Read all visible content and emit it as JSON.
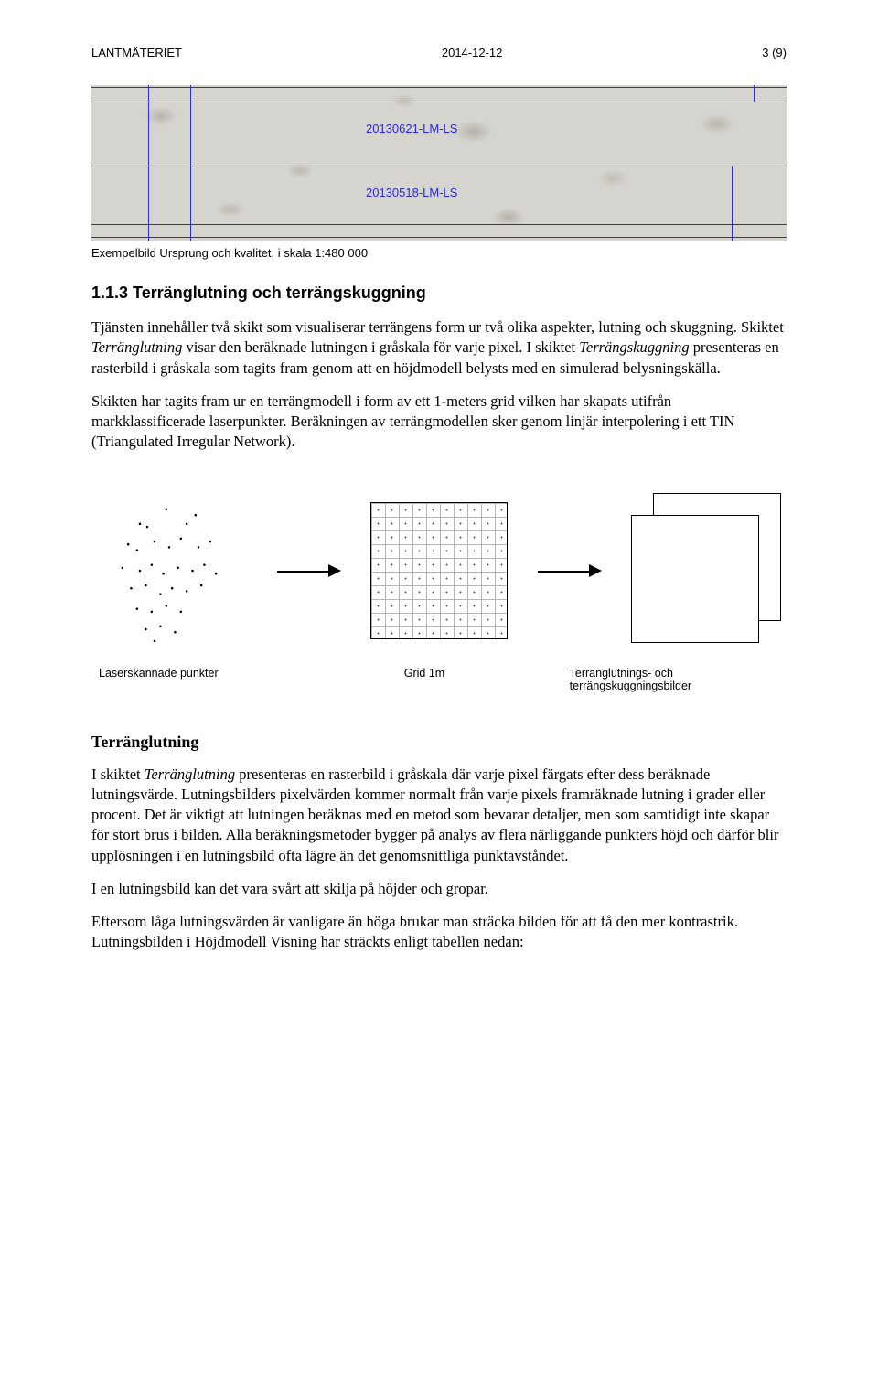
{
  "header": {
    "org": "LANTMÄTERIET",
    "date": "2014-12-12",
    "page": "3 (9)"
  },
  "figure1": {
    "label_a": "20130621-LM-LS",
    "label_b": "20130518-LM-LS",
    "caption": "Exempelbild Ursprung och kvalitet, i skala 1:480 000",
    "line_color": "#2a2ae0",
    "background": "#d6d4cf"
  },
  "section": {
    "number_title": "1.1.3 Terränglutning och terrängskuggning"
  },
  "para1_a": "Tjänsten innehåller två skikt som visualiserar terrängens form ur två olika aspekter, lutning och skuggning. Skiktet ",
  "para1_term1": "Terränglutning",
  "para1_b": " visar den beräknade lutningen i gråskala för varje pixel. I skiktet ",
  "para1_term2": "Terrängskuggning",
  "para1_c": " presenteras en rasterbild i gråskala som tagits fram genom att en höjdmodell belysts med en simulerad belysningskälla.",
  "para2": "Skikten har tagits fram ur en terrängmodell i form av ett 1-meters grid vilken har skapats utifrån markklassificerade laserpunkter. Beräkningen av terrängmodellen sker genom linjär interpolering i ett TIN (Triangulated Irregular Network).",
  "diagram": {
    "label1": "Laserskannade punkter",
    "label2": "Grid 1m",
    "label3": "Terränglutnings- och terrängskuggningsbilder",
    "scatter_points": [
      [
        0.48,
        0.08
      ],
      [
        0.3,
        0.18
      ],
      [
        0.35,
        0.2
      ],
      [
        0.62,
        0.18
      ],
      [
        0.68,
        0.12
      ],
      [
        0.22,
        0.32
      ],
      [
        0.28,
        0.36
      ],
      [
        0.4,
        0.3
      ],
      [
        0.5,
        0.34
      ],
      [
        0.58,
        0.28
      ],
      [
        0.7,
        0.34
      ],
      [
        0.78,
        0.3
      ],
      [
        0.18,
        0.48
      ],
      [
        0.3,
        0.5
      ],
      [
        0.38,
        0.46
      ],
      [
        0.46,
        0.52
      ],
      [
        0.56,
        0.48
      ],
      [
        0.66,
        0.5
      ],
      [
        0.74,
        0.46
      ],
      [
        0.82,
        0.52
      ],
      [
        0.24,
        0.62
      ],
      [
        0.34,
        0.6
      ],
      [
        0.44,
        0.66
      ],
      [
        0.52,
        0.62
      ],
      [
        0.62,
        0.64
      ],
      [
        0.72,
        0.6
      ],
      [
        0.28,
        0.76
      ],
      [
        0.38,
        0.78
      ],
      [
        0.48,
        0.74
      ],
      [
        0.58,
        0.78
      ],
      [
        0.34,
        0.9
      ],
      [
        0.44,
        0.88
      ],
      [
        0.54,
        0.92
      ],
      [
        0.4,
        0.98
      ]
    ]
  },
  "subheading": "Terränglutning",
  "para3_a": "I skiktet ",
  "para3_term": "Terränglutning",
  "para3_b": " presenteras en rasterbild i gråskala där varje pixel färgats efter dess beräknade lutningsvärde. Lutningsbilders pixelvärden kommer normalt från varje pixels framräknade lutning i grader eller procent. Det är viktigt att lutningen beräknas med en metod som bevarar detaljer, men som samtidigt inte skapar för stort brus i bilden. Alla beräkningsmetoder bygger på analys av flera närliggande punkters höjd och därför blir upplösningen i en lutningsbild ofta lägre än det genomsnittliga punktavståndet.",
  "para4": "I en lutningsbild kan det vara svårt att skilja på höjder och gropar.",
  "para5": "Eftersom låga lutningsvärden är vanligare än höga brukar man sträcka bilden för att få den mer kontrastrik. Lutningsbilden i Höjdmodell Visning har sträckts enligt tabellen nedan:"
}
